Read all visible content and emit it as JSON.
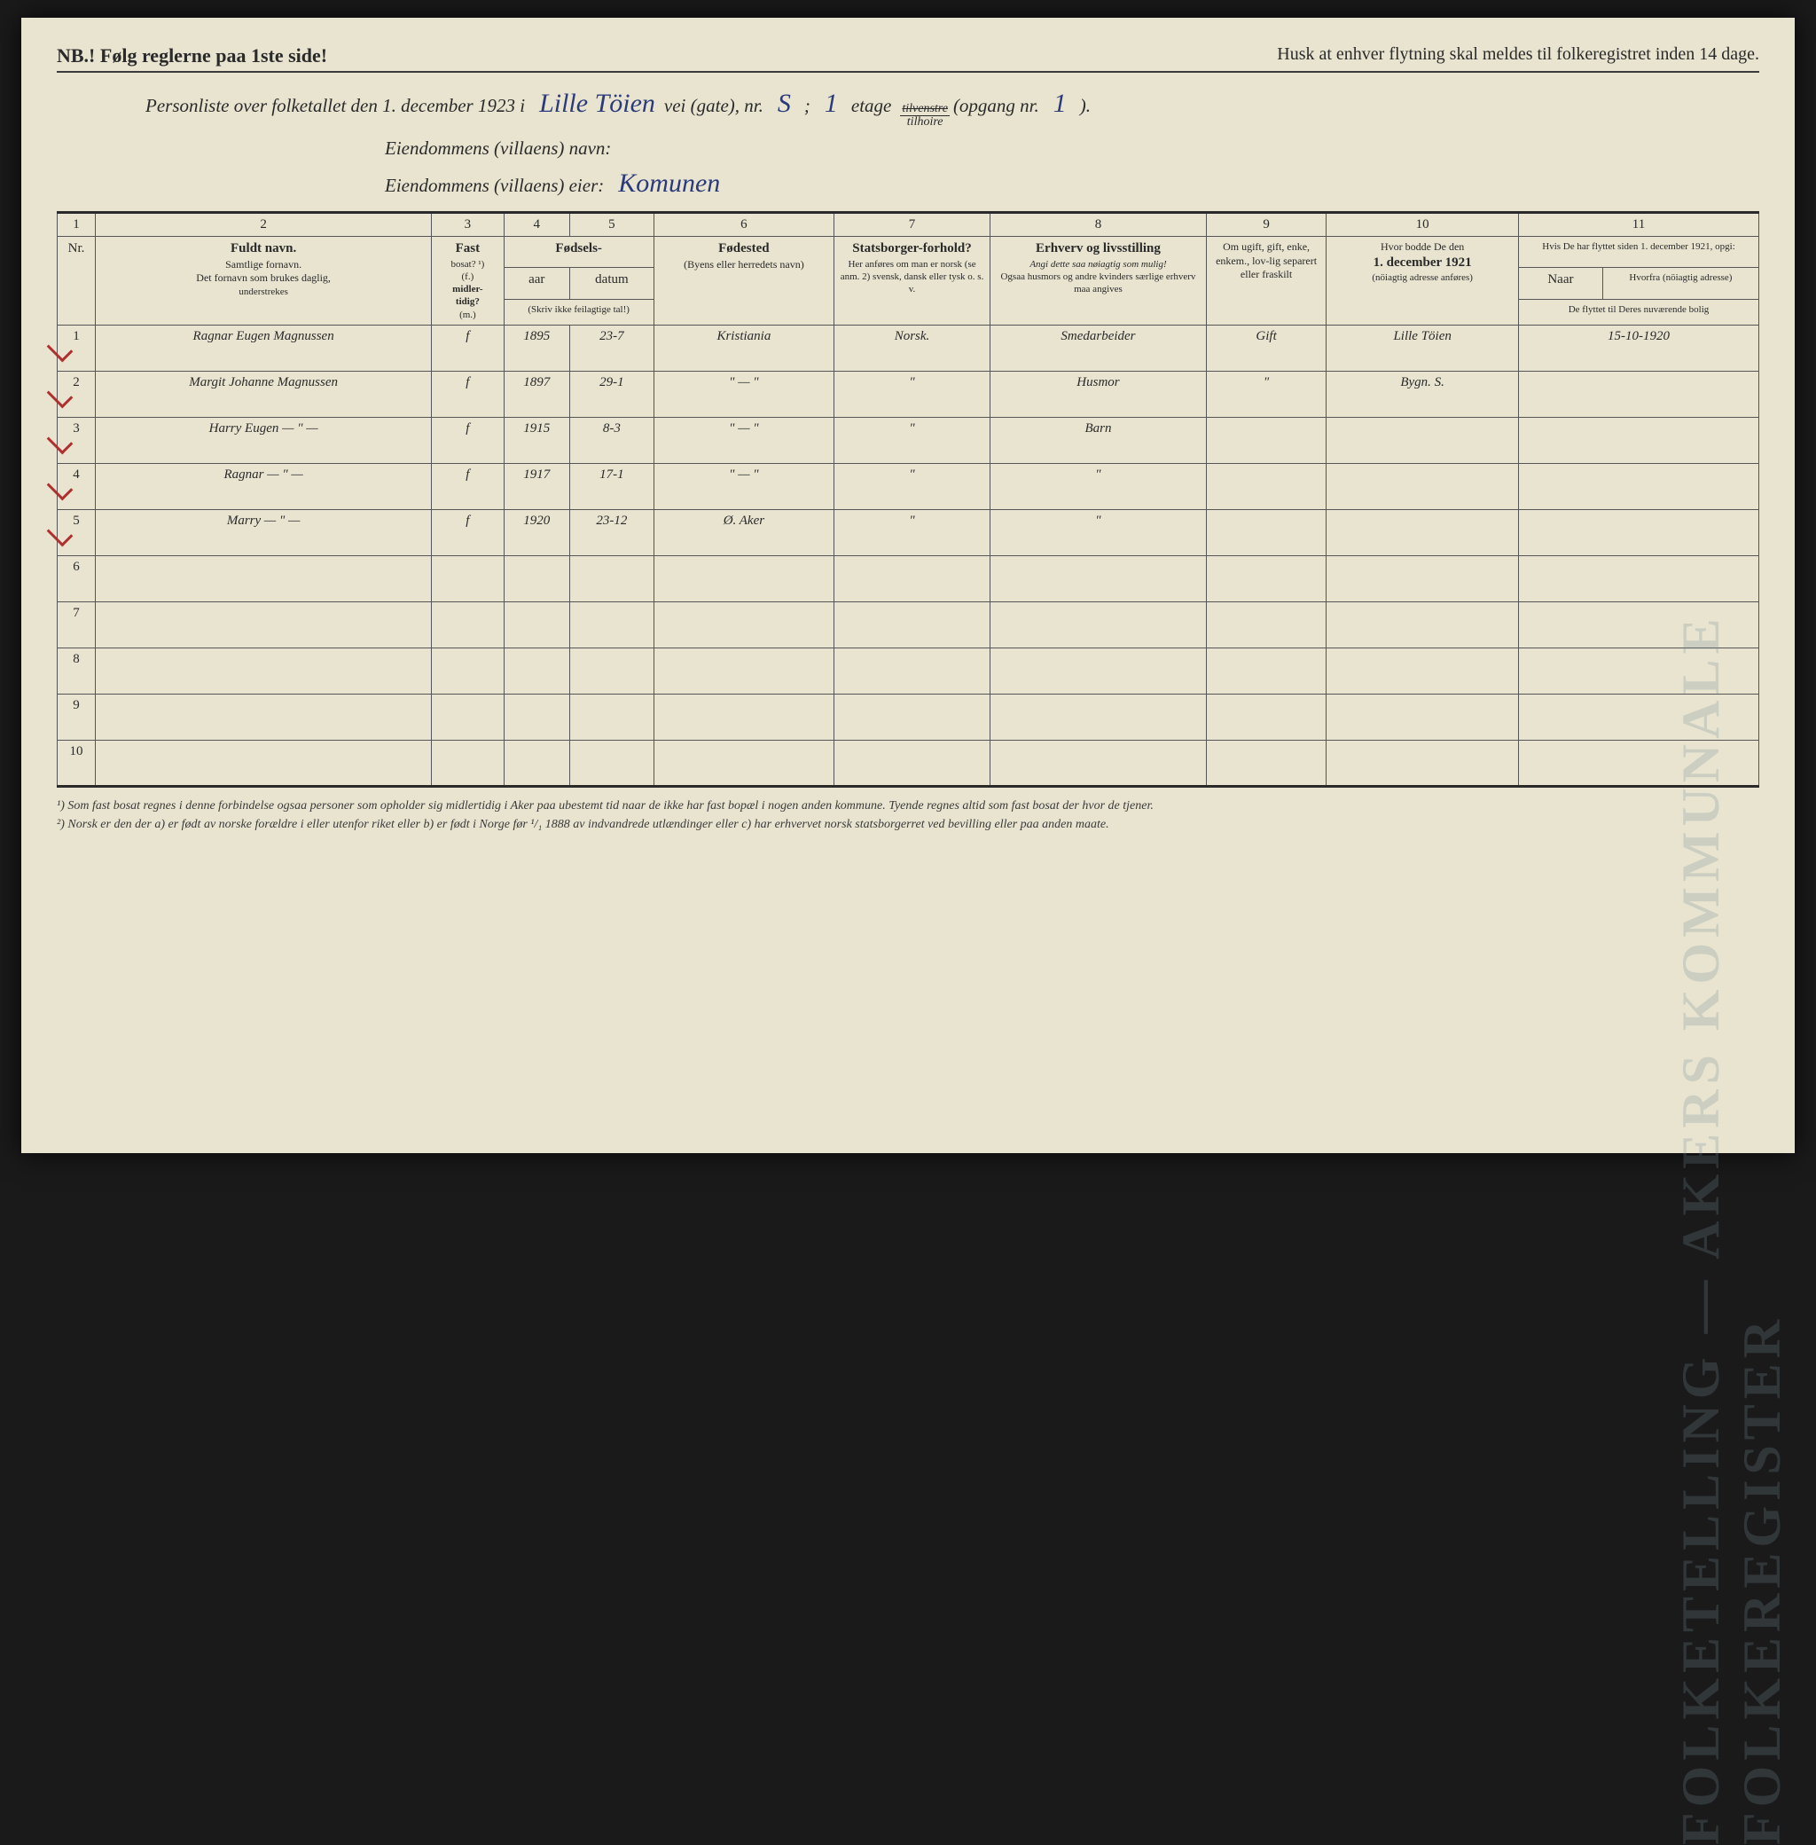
{
  "topbar": {
    "nb": "NB.! Følg reglerne paa 1ste side!",
    "husk": "Husk at enhver flytning skal meldes til folkeregistret inden 14 dage."
  },
  "header": {
    "line1_pre": "Personliste over folketallet den 1. december 1923 i",
    "street": "Lille Töien",
    "line1_mid1": "vei (gate), nr.",
    "nr": "S",
    "line1_mid2": ";",
    "etage_num": "1",
    "line1_mid3": "etage",
    "frac_top": "tilvenstre",
    "frac_bot": "tilhoire",
    "line1_end": "(opgang nr.",
    "opgang": "1",
    "line1_close": ").",
    "line2_label": "Eiendommens (villaens) navn:",
    "line2_val": "",
    "line3_label": "Eiendommens (villaens) eier:",
    "line3_val": "Komunen"
  },
  "colnums": {
    "c1": "1",
    "c2": "2",
    "c3": "3",
    "c4": "4",
    "c5": "5",
    "c6": "6",
    "c7": "7",
    "c8": "8",
    "c9": "9",
    "c10": "10",
    "c11": "11"
  },
  "headers": {
    "nr": "Nr.",
    "name_t": "Fuldt navn.",
    "name_s1": "Samtlige fornavn.",
    "name_s2": "Det fornavn som brukes daglig,",
    "name_s3": "understrekes",
    "fast_t": "Fast",
    "fast_s1": "bosat? ¹)",
    "fast_s2": "(f.)",
    "fast_s3": "midler-",
    "fast_s4": "tidig?",
    "fast_s5": "(m.)",
    "fod_t": "Fødsels-",
    "aar": "aar",
    "datum": "datum",
    "fod_s": "(Skriv ikke feilagtige tal!)",
    "fsted_t": "Fødested",
    "fsted_s": "(Byens eller herredets navn)",
    "stats_t": "Statsborger-forhold?",
    "stats_s": "Her anføres om man er norsk (se anm. 2) svensk, dansk eller tysk o. s. v.",
    "erh_t": "Erhverv og livsstilling",
    "erh_s1": "Angi dette saa nøiagtig som mulig!",
    "erh_s2": "Ogsaa husmors og andre kvinders særlige erhverv maa angives",
    "gift_t": "Om ugift, gift, enke, enkem., lov-lig separert eller fraskilt",
    "d1921_t": "Hvor bodde De den",
    "d1921_b": "1. december 1921",
    "d1921_s": "(nöiagtig adresse anføres)",
    "c11_t": "Hvis De har flyttet siden 1. december 1921, opgi:",
    "naar": "Naar",
    "hvorfra": "Hvorfra (nöiagtig adresse)",
    "c11_s": "De flyttet til Deres nuværende bolig"
  },
  "rows": [
    {
      "n": "1",
      "name": "Ragnar Eugen Magnussen",
      "fast": "f",
      "aar": "1895",
      "dat": "23-7",
      "fsted": "Kristiania",
      "stats": "Norsk.",
      "erh": "Smedarbeider",
      "gift": "Gift",
      "d1921": "Lille Töien",
      "moved": "15-10-1920"
    },
    {
      "n": "2",
      "name": "Margit Johanne Magnussen",
      "fast": "f",
      "aar": "1897",
      "dat": "29-1",
      "fsted": "\" — \"",
      "stats": "\"",
      "erh": "Husmor",
      "gift": "\"",
      "d1921": "Bygn. S.",
      "moved": ""
    },
    {
      "n": "3",
      "name": "Harry Eugen   — \" —",
      "fast": "f",
      "aar": "1915",
      "dat": "8-3",
      "fsted": "\" — \"",
      "stats": "\"",
      "erh": "Barn",
      "gift": "",
      "d1921": "",
      "moved": ""
    },
    {
      "n": "4",
      "name": "Ragnar        — \" —",
      "fast": "f",
      "aar": "1917",
      "dat": "17-1",
      "fsted": "\" — \"",
      "stats": "\"",
      "erh": "\"",
      "gift": "",
      "d1921": "",
      "moved": ""
    },
    {
      "n": "5",
      "name": "Marry         — \" —",
      "fast": "f",
      "aar": "1920",
      "dat": "23-12",
      "fsted": "Ø. Aker",
      "stats": "\"",
      "erh": "\"",
      "gift": "",
      "d1921": "",
      "moved": ""
    }
  ],
  "emptyrows": [
    "6",
    "7",
    "8",
    "9",
    "10"
  ],
  "footnotes": {
    "f1": "¹) Som fast bosat regnes i denne forbindelse ogsaa personer som opholder sig midlertidig i Aker paa ubestemt tid naar de ikke har fast bopæl i nogen anden kommune. Tyende regnes altid som fast bosat der hvor de tjener.",
    "f2": "²) Norsk er den der a) er født av norske forældre i eller utenfor riket eller b) er født i Norge før ¹/₁ 1888 av indvandrede utlændinger eller c) har erhvervet norsk statsborgerret ved bevilling eller paa anden maate."
  },
  "watermark": "FOLKETELLING — AKERS KOMMUNALE FOLKEREGISTER",
  "colors": {
    "page_bg": "#e8e4d0",
    "ink": "#2a2a2a",
    "handwriting": "#2a3a7a",
    "red_tick": "#b03030",
    "border": "#555555"
  }
}
